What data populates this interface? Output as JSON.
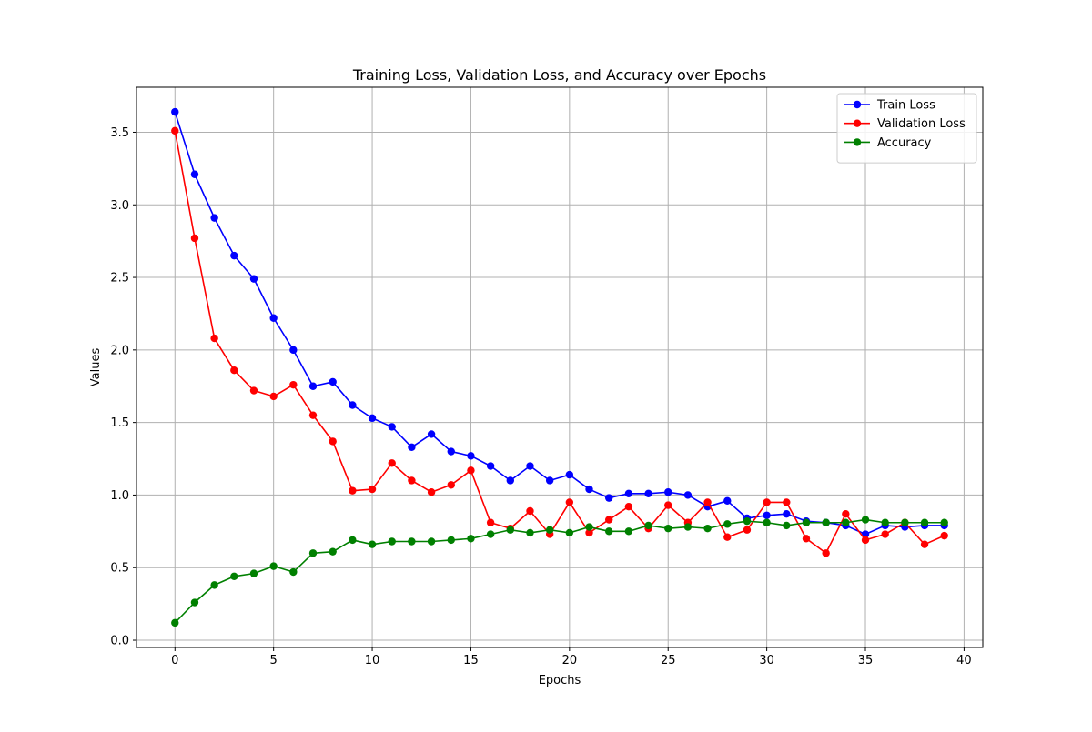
{
  "chart_data": {
    "type": "line",
    "title": "Training Loss, Validation Loss, and Accuracy over Epochs",
    "xlabel": "Epochs",
    "ylabel": "Values",
    "xlim": [
      -1.95,
      40.95
    ],
    "ylim": [
      -0.05,
      3.81
    ],
    "xticks": [
      0,
      5,
      10,
      15,
      20,
      25,
      30,
      35,
      40
    ],
    "yticks": [
      0.0,
      0.5,
      1.0,
      1.5,
      2.0,
      2.5,
      3.0,
      3.5
    ],
    "xtick_labels": [
      "0",
      "5",
      "10",
      "15",
      "20",
      "25",
      "30",
      "35",
      "40"
    ],
    "ytick_labels": [
      "0.0",
      "0.5",
      "1.0",
      "1.5",
      "2.0",
      "2.5",
      "3.0",
      "3.5"
    ],
    "grid": true,
    "legend_position": "top-right",
    "x": [
      0,
      1,
      2,
      3,
      4,
      5,
      6,
      7,
      8,
      9,
      10,
      11,
      12,
      13,
      14,
      15,
      16,
      17,
      18,
      19,
      20,
      21,
      22,
      23,
      24,
      25,
      26,
      27,
      28,
      29,
      30,
      31,
      32,
      33,
      34,
      35,
      36,
      37,
      38,
      39
    ],
    "series": [
      {
        "name": "Train Loss",
        "color": "#0000ff",
        "values": [
          3.64,
          3.21,
          2.91,
          2.65,
          2.49,
          2.22,
          2.0,
          1.75,
          1.78,
          1.62,
          1.53,
          1.47,
          1.33,
          1.42,
          1.3,
          1.27,
          1.2,
          1.1,
          1.2,
          1.1,
          1.14,
          1.04,
          0.98,
          1.01,
          1.01,
          1.02,
          1.0,
          0.92,
          0.96,
          0.84,
          0.86,
          0.87,
          0.82,
          0.81,
          0.79,
          0.73,
          0.79,
          0.78,
          0.79,
          0.79
        ]
      },
      {
        "name": "Validation Loss",
        "color": "#ff0000",
        "values": [
          3.51,
          2.77,
          2.08,
          1.86,
          1.72,
          1.68,
          1.76,
          1.55,
          1.37,
          1.03,
          1.04,
          1.22,
          1.1,
          1.02,
          1.07,
          1.17,
          0.81,
          0.77,
          0.89,
          0.73,
          0.95,
          0.74,
          0.83,
          0.92,
          0.77,
          0.93,
          0.81,
          0.95,
          0.71,
          0.76,
          0.95,
          0.95,
          0.7,
          0.6,
          0.87,
          0.69,
          0.73,
          0.81,
          0.66,
          0.72
        ]
      },
      {
        "name": "Accuracy",
        "color": "#008000",
        "values": [
          0.12,
          0.26,
          0.38,
          0.44,
          0.46,
          0.51,
          0.47,
          0.6,
          0.61,
          0.69,
          0.66,
          0.68,
          0.68,
          0.68,
          0.69,
          0.7,
          0.73,
          0.76,
          0.74,
          0.76,
          0.74,
          0.78,
          0.75,
          0.75,
          0.79,
          0.77,
          0.78,
          0.77,
          0.8,
          0.82,
          0.81,
          0.79,
          0.81,
          0.81,
          0.81,
          0.83,
          0.81,
          0.81,
          0.81,
          0.81
        ]
      }
    ]
  }
}
